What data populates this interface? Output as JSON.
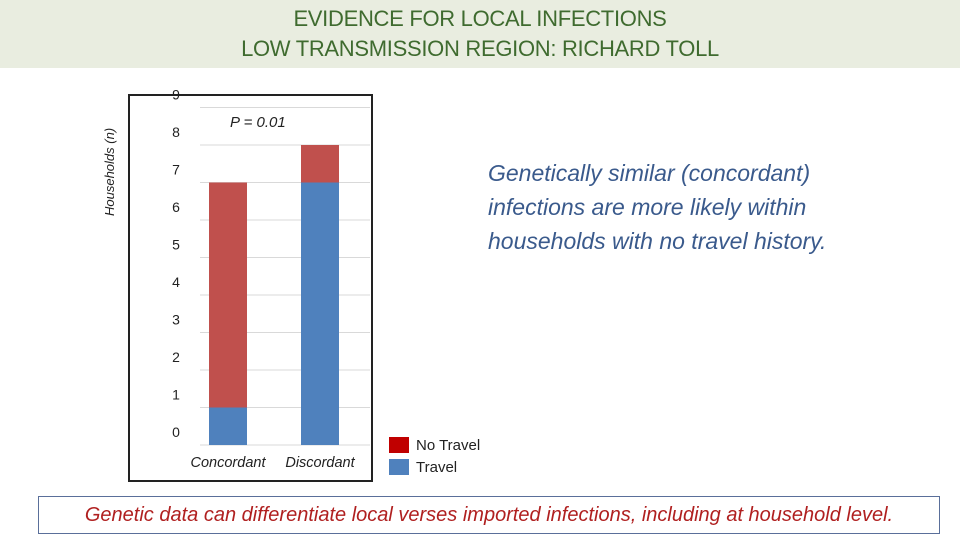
{
  "header": {
    "title_line1": "EVIDENCE FOR LOCAL INFECTIONS",
    "title_line2": "LOW TRANSMISSION REGION: RICHARD TOLL"
  },
  "chart_data": {
    "type": "bar",
    "stacked": true,
    "categories": [
      "Concordant",
      "Discordant"
    ],
    "series": [
      {
        "name": "Travel",
        "values": [
          1,
          7
        ],
        "color": "#4f81bd"
      },
      {
        "name": "No Travel",
        "values": [
          6,
          1
        ],
        "color": "#c0504d"
      }
    ],
    "ylabel": "Households (n)",
    "ylim": [
      0,
      9
    ],
    "yticks": [
      "0",
      "1",
      "2",
      "3",
      "4",
      "5",
      "6",
      "7",
      "8",
      "9"
    ],
    "grid": true,
    "annotation": "P = 0.01"
  },
  "legend": {
    "items": [
      {
        "label": "No Travel",
        "color": "#c00000"
      },
      {
        "label": "Travel",
        "color": "#4f81bd"
      }
    ]
  },
  "annotation_text": "Genetically similar (concordant) infections are more likely within households with no travel history.",
  "footer_text": "Genetic data can differentiate local verses imported infections, including at household level."
}
